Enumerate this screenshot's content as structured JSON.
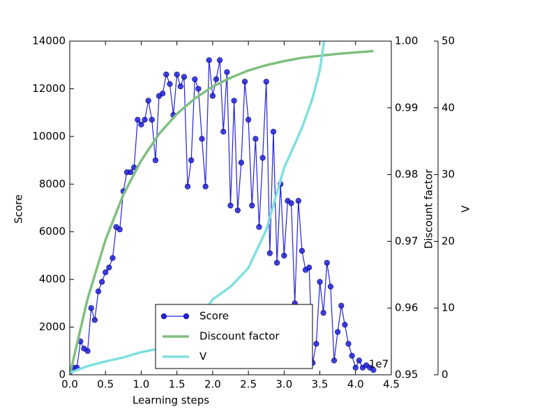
{
  "chart_data": {
    "type": "line",
    "x_label": "Learning steps",
    "x_offset_label": "1e7",
    "xlim": [
      0,
      4.5
    ],
    "xticks": [
      {
        "value": 0,
        "label": "0.0"
      },
      0.5,
      {
        "value": 1,
        "label": "1.0"
      },
      1.5,
      {
        "value": 2,
        "label": "2.0"
      },
      2.5,
      {
        "value": 3,
        "label": "3.0"
      },
      3.5,
      {
        "value": 4,
        "label": "4.0"
      },
      4.5
    ],
    "y_label": "Score",
    "ylim": [
      0,
      14000
    ],
    "yticks": [
      0,
      2000,
      4000,
      6000,
      8000,
      10000,
      12000,
      14000
    ],
    "y_label_color": "#0000ff",
    "y2_label": "Discount factor",
    "y2lim": [
      0.95,
      1
    ],
    "y2ticks": [
      0.95,
      0.96,
      0.97,
      0.98,
      0.99,
      {
        "value": 1,
        "label": "1.00"
      }
    ],
    "y2_label_color": "#008000",
    "y3_label": "V",
    "y3lim": [
      0,
      50
    ],
    "y3ticks": [
      0,
      10,
      20,
      30,
      40,
      50
    ],
    "y3_label_color": "#00bfbf",
    "legend": "lower center",
    "series": [
      {
        "name": "Score",
        "color": "#2222dd",
        "marker": true,
        "axis": "y",
        "x": [
          0,
          0.05,
          0.1,
          0.15,
          0.2,
          0.25,
          0.3,
          0.35,
          0.4,
          0.45,
          0.5,
          0.55,
          0.6,
          0.65,
          0.7,
          0.75,
          0.8,
          0.85,
          0.9,
          0.95,
          1,
          1.05,
          1.1,
          1.15,
          1.2,
          1.25,
          1.3,
          1.35,
          1.4,
          1.45,
          1.5,
          1.55,
          1.6,
          1.65,
          1.7,
          1.75,
          1.8,
          1.85,
          1.9,
          1.95,
          2,
          2.05,
          2.1,
          2.15,
          2.2,
          2.25,
          2.3,
          2.35,
          2.4,
          2.45,
          2.5,
          2.55,
          2.6,
          2.65,
          2.7,
          2.75,
          2.8,
          2.85,
          2.9,
          2.95,
          3,
          3.05,
          3.1,
          3.15,
          3.2,
          3.25,
          3.3,
          3.35,
          3.4,
          3.45,
          3.5,
          3.55,
          3.6,
          3.65,
          3.7,
          3.75,
          3.8,
          3.85,
          3.9,
          3.95,
          4,
          4.05,
          4.1,
          4.15,
          4.2,
          4.25
        ],
        "values": [
          100,
          300,
          300,
          1400,
          1100,
          1000,
          2800,
          2300,
          3500,
          3900,
          4300,
          4500,
          4900,
          6200,
          6100,
          7700,
          8500,
          8500,
          8700,
          10700,
          10500,
          10700,
          11500,
          10700,
          9000,
          11700,
          11800,
          12600,
          12200,
          10900,
          12600,
          12100,
          12500,
          7900,
          9000,
          12400,
          12000,
          9900,
          7900,
          13200,
          11700,
          12400,
          13200,
          10200,
          12700,
          7100,
          11500,
          6900,
          8900,
          12300,
          10700,
          7100,
          9900,
          6200,
          9100,
          12300,
          5100,
          10200,
          4700,
          8000,
          5000,
          7300,
          7200,
          3000,
          7300,
          5200,
          4400,
          4500,
          500,
          1300,
          3900,
          2600,
          4700,
          3700,
          600,
          1800,
          2900,
          2100,
          1300,
          800,
          300,
          600,
          300,
          400,
          300,
          200
        ]
      },
      {
        "name": "Discount factor",
        "color": "#7fbf7f",
        "marker": false,
        "axis": "y2",
        "x": [
          0,
          0.25,
          0.5,
          0.75,
          1,
          1.25,
          1.5,
          1.75,
          2,
          2.25,
          2.5,
          2.75,
          3,
          3.25,
          3.5,
          3.75,
          4,
          4.25
        ],
        "values": [
          0.95,
          0.9614,
          0.9702,
          0.977,
          0.9821,
          0.9861,
          0.9891,
          0.9914,
          0.9932,
          0.9945,
          0.9956,
          0.9964,
          0.997,
          0.9975,
          0.9978,
          0.9981,
          0.9983,
          0.9985
        ]
      },
      {
        "name": "V",
        "color": "#7fdfdf",
        "marker": false,
        "axis": "y3",
        "x": [
          0,
          0.25,
          0.5,
          0.75,
          1,
          1.25,
          1.5,
          1.75,
          2,
          2.25,
          2.5,
          2.75,
          3,
          3.25,
          3.4,
          3.5,
          3.56
        ],
        "values": [
          0.3,
          1.3,
          2,
          2.6,
          3.4,
          3.9,
          5.6,
          7.5,
          11.3,
          13.2,
          16,
          21.7,
          31,
          37,
          41.5,
          45.7,
          50
        ]
      }
    ]
  }
}
